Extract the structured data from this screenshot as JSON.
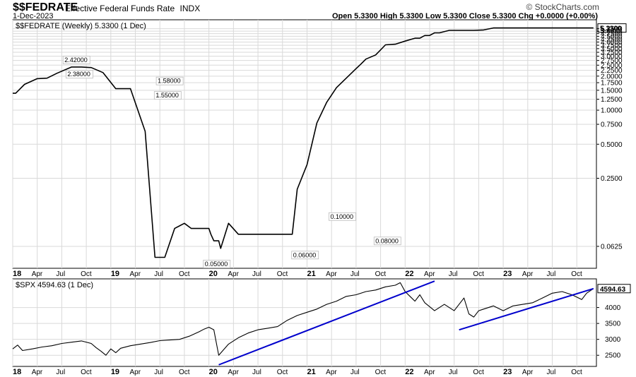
{
  "header": {
    "symbol": "$$FEDRATE",
    "name": "Effective Federal Funds Rate",
    "exchange": "INDX",
    "date": "1-Dec-2023",
    "ohlc": "Open 5.3300  High 5.3300  Low 5.3300  Close 5.3300  Chg +0.0000 (+0.00%)",
    "brand": "© StockCharts.com"
  },
  "colors": {
    "price_line": "#000000",
    "trend_line": "#0000cc",
    "grid": "#d9d9d9"
  },
  "chart_data": [
    {
      "type": "line",
      "title": "$$FEDRATE (Weekly) 5.3300 (1 Dec)",
      "legend": "$$FEDRATE (Weekly) 5.3300 (1 Dec)",
      "scale": "log",
      "ylim": [
        0.04,
        6.3
      ],
      "y_ticks": [
        0.0625,
        0.25,
        0.5,
        0.75,
        1.0,
        1.25,
        1.5,
        1.75,
        2.0,
        2.25,
        2.5,
        2.75,
        3.0,
        3.25,
        3.5,
        3.75,
        4.0,
        4.25,
        4.5,
        4.75,
        5.0,
        5.25
      ],
      "y_tick_labels": [
        "0.0625",
        "0.2500",
        "0.5000",
        "0.7500",
        "1.0000",
        "1.2500",
        "1.5000",
        "1.7500",
        "2.0000",
        "2.2500",
        "2.5000",
        "2.7500",
        "3.0000",
        "3.2500",
        "3.5000",
        "3.7500",
        "4.0000",
        "4.2500",
        "4.5000",
        "4.7500",
        "5.0000",
        "5.2500"
      ],
      "last_value_label": "5.3300",
      "last_value": 5.33,
      "x": [
        0,
        0.03,
        0.12,
        0.25,
        0.35,
        0.45,
        0.6,
        0.7,
        0.8,
        0.92,
        1.05,
        1.2,
        1.35,
        1.45,
        1.55,
        1.65,
        1.75,
        1.82,
        1.9,
        1.95,
        2.0,
        2.02,
        2.05,
        2.1,
        2.12,
        2.2,
        2.3,
        2.4,
        2.5,
        2.7,
        2.85,
        2.9,
        3.0,
        3.1,
        3.2,
        3.3,
        3.5,
        3.55,
        3.6,
        3.7,
        3.8,
        3.9,
        4.0,
        4.1,
        4.15,
        4.2,
        4.25,
        4.3,
        4.35,
        4.45,
        4.55,
        4.6,
        4.7,
        4.8,
        4.9,
        5.05,
        5.2,
        5.35,
        5.4,
        5.6,
        5.7,
        5.92
      ],
      "y": [
        1.41,
        1.41,
        1.69,
        1.9,
        1.92,
        2.12,
        2.41,
        2.41,
        2.38,
        2.15,
        1.55,
        1.55,
        0.65,
        0.05,
        0.05,
        0.09,
        0.1,
        0.09,
        0.09,
        0.09,
        0.09,
        0.08,
        0.07,
        0.07,
        0.06,
        0.1,
        0.08,
        0.08,
        0.08,
        0.08,
        0.08,
        0.2,
        0.33,
        0.77,
        1.17,
        1.58,
        2.33,
        2.56,
        2.83,
        3.08,
        3.78,
        3.83,
        4.08,
        4.33,
        4.33,
        4.57,
        4.58,
        4.83,
        4.83,
        5.08,
        5.08,
        5.08,
        5.08,
        5.12,
        5.33,
        5.33,
        5.33,
        5.33,
        5.33,
        5.33,
        5.33,
        5.33
      ],
      "annotations": [
        {
          "text": "2.42000",
          "x": 0.65,
          "y": 2.42
        },
        {
          "text": "2.38000",
          "x": 0.68,
          "y": 2.38
        },
        {
          "text": "1.58000",
          "x": 1.6,
          "y": 1.58
        },
        {
          "text": "1.55000",
          "x": 1.58,
          "y": 1.55
        },
        {
          "text": "0.05000",
          "x": 2.08,
          "y": 0.05
        },
        {
          "text": "0.06000",
          "x": 2.98,
          "y": 0.06
        },
        {
          "text": "0.10000",
          "x": 3.36,
          "y": 0.1
        },
        {
          "text": "0.08000",
          "x": 3.82,
          "y": 0.08
        }
      ]
    },
    {
      "type": "line",
      "title": "$SPX 4594.63 (1 Dec)",
      "legend": "$SPX 4594.63 (1 Dec)",
      "scale": "linear",
      "ylim": [
        2150,
        4900
      ],
      "y_ticks": [
        2500,
        3000,
        3500,
        4000
      ],
      "y_tick_labels": [
        "2500",
        "3000",
        "3500",
        "4000"
      ],
      "last_value_label": "4594.63",
      "last_value": 4594.63,
      "x": [
        0,
        0.05,
        0.1,
        0.2,
        0.3,
        0.4,
        0.5,
        0.6,
        0.7,
        0.8,
        0.85,
        0.9,
        0.95,
        1.0,
        1.05,
        1.1,
        1.2,
        1.3,
        1.4,
        1.5,
        1.6,
        1.7,
        1.8,
        1.9,
        1.95,
        2.0,
        2.05,
        2.1,
        2.2,
        2.3,
        2.4,
        2.5,
        2.6,
        2.7,
        2.8,
        2.9,
        3.0,
        3.1,
        3.2,
        3.3,
        3.4,
        3.5,
        3.6,
        3.7,
        3.8,
        3.9,
        3.95,
        4.0,
        4.05,
        4.1,
        4.15,
        4.2,
        4.3,
        4.4,
        4.5,
        4.6,
        4.65,
        4.7,
        4.75,
        4.8,
        4.9,
        5.0,
        5.1,
        5.2,
        5.3,
        5.4,
        5.5,
        5.6,
        5.7,
        5.8,
        5.85,
        5.92
      ],
      "y": [
        2700,
        2820,
        2650,
        2700,
        2760,
        2800,
        2870,
        2910,
        2950,
        2870,
        2740,
        2630,
        2500,
        2700,
        2580,
        2720,
        2800,
        2850,
        2900,
        2960,
        2980,
        3000,
        3100,
        3240,
        3320,
        3380,
        3300,
        2500,
        2850,
        3050,
        3200,
        3300,
        3350,
        3400,
        3600,
        3750,
        3850,
        3950,
        4100,
        4200,
        4350,
        4400,
        4500,
        4550,
        4650,
        4700,
        4780,
        4500,
        4350,
        4200,
        4400,
        4150,
        3900,
        4100,
        3900,
        4300,
        3800,
        3700,
        3900,
        3950,
        4050,
        3900,
        4050,
        4100,
        4150,
        4300,
        4450,
        4500,
        4400,
        4250,
        4450,
        4594.63
      ],
      "trend_lines": [
        {
          "from": [
            2.1,
            2200
          ],
          "to": [
            4.3,
            4830
          ]
        },
        {
          "from": [
            4.55,
            3300
          ],
          "to": [
            5.92,
            4594.63
          ]
        }
      ]
    }
  ],
  "x_axis": {
    "ticks": [
      0,
      0.25,
      0.5,
      0.75,
      1.0,
      1.25,
      1.5,
      1.75,
      2.0,
      2.25,
      2.5,
      2.75,
      3.0,
      3.25,
      3.5,
      3.75,
      4.0,
      4.25,
      4.5,
      4.75,
      5.0,
      5.25,
      5.5,
      5.75
    ],
    "labels": [
      "18",
      "Apr",
      "Jul",
      "Oct",
      "19",
      "Apr",
      "Jul",
      "Oct",
      "20",
      "Apr",
      "Jul",
      "Oct",
      "21",
      "Apr",
      "Jul",
      "Oct",
      "22",
      "Apr",
      "Jul",
      "Oct",
      "23",
      "Apr",
      "Jul",
      "Oct"
    ],
    "year_ticks": [
      0,
      1.0,
      2.0,
      3.0,
      4.0,
      5.0
    ]
  }
}
